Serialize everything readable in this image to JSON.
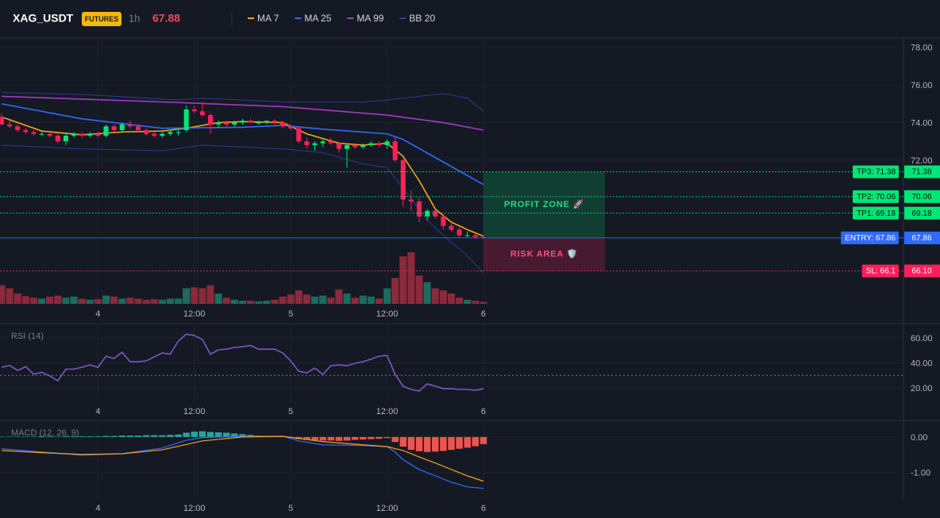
{
  "header": {
    "symbol": "XAG_USDT",
    "badge": "FUTURES",
    "interval": "1h",
    "last_price": 67.88
  },
  "chart_data": [
    {
      "type": "candlestick",
      "xlim": [
        -0.2,
        112.3
      ],
      "xticks": [
        {
          "value": 12,
          "label": "4"
        },
        {
          "value": 24,
          "label": "12:00"
        },
        {
          "value": 36,
          "label": "5"
        },
        {
          "value": 48,
          "label": "12:00"
        },
        {
          "value": 60,
          "label": "6"
        }
      ],
      "ylim": [
        64.35,
        78.5
      ],
      "yticks": [
        {
          "value": 78,
          "label": "78.00"
        },
        {
          "value": 76,
          "label": "76.00"
        },
        {
          "value": 74,
          "label": "74.00"
        },
        {
          "value": 72,
          "label": "72.00"
        }
      ],
      "grid": true,
      "up_color": "#00e676",
      "down_color": "#ff1f5a",
      "open": [
        74.3,
        73.9,
        73.8,
        73.6,
        73.5,
        73.4,
        73.4,
        73.3,
        73.0,
        73.3,
        73.4,
        73.3,
        73.4,
        73.3,
        73.8,
        73.6,
        73.9,
        73.8,
        73.6,
        73.4,
        73.3,
        73.4,
        73.5,
        73.6,
        74.7,
        74.6,
        74.4,
        73.9,
        74.0,
        73.9,
        74.0,
        74.1,
        74.0,
        74.0,
        74.1,
        74.0,
        73.8,
        73.7,
        73.0,
        72.8,
        72.9,
        73.0,
        72.9,
        72.6,
        72.8,
        72.7,
        72.8,
        72.9,
        72.8,
        73.0,
        72.0,
        69.9,
        69.8,
        69.0,
        69.3,
        69.0,
        68.5,
        68.3,
        68.0,
        68.0,
        67.9
      ],
      "high": [
        74.5,
        74.1,
        73.9,
        73.7,
        73.6,
        73.5,
        73.5,
        73.4,
        73.4,
        73.5,
        73.5,
        73.5,
        73.5,
        73.9,
        73.9,
        74.0,
        74.1,
        73.9,
        73.7,
        73.5,
        73.5,
        73.6,
        73.6,
        74.9,
        74.9,
        75.1,
        74.5,
        74.1,
        74.1,
        74.1,
        74.2,
        74.2,
        74.1,
        74.1,
        74.2,
        74.1,
        73.9,
        73.8,
        73.2,
        73.0,
        73.1,
        73.2,
        73.0,
        72.9,
        72.9,
        72.9,
        73.0,
        73.0,
        73.1,
        73.2,
        72.1,
        70.4,
        70.0,
        69.4,
        69.4,
        69.1,
        68.7,
        68.4,
        68.2,
        68.1,
        68.0
      ],
      "low": [
        73.9,
        73.7,
        73.5,
        73.4,
        73.3,
        73.3,
        73.2,
        72.9,
        72.8,
        73.2,
        73.2,
        73.2,
        73.2,
        73.2,
        73.5,
        73.5,
        73.7,
        73.5,
        73.3,
        73.2,
        73.2,
        73.3,
        73.3,
        73.5,
        74.5,
        74.3,
        73.4,
        73.7,
        73.8,
        73.8,
        73.9,
        74.0,
        73.9,
        73.9,
        73.9,
        73.7,
        73.6,
        72.9,
        72.6,
        72.5,
        72.7,
        72.8,
        72.4,
        71.6,
        72.6,
        72.6,
        72.7,
        72.7,
        72.6,
        71.9,
        69.5,
        69.3,
        68.7,
        68.8,
        68.9,
        68.3,
        68.2,
        67.9,
        67.9,
        67.8,
        67.8
      ],
      "close": [
        73.9,
        73.8,
        73.6,
        73.5,
        73.4,
        73.4,
        73.3,
        73.0,
        73.3,
        73.4,
        73.3,
        73.4,
        73.3,
        73.8,
        73.6,
        73.9,
        73.8,
        73.6,
        73.4,
        73.3,
        73.4,
        73.5,
        73.5,
        74.7,
        74.6,
        74.4,
        73.9,
        74.0,
        73.9,
        74.0,
        74.1,
        74.0,
        74.0,
        74.1,
        74.0,
        73.8,
        73.7,
        73.0,
        72.8,
        72.9,
        73.0,
        72.9,
        72.6,
        72.8,
        72.7,
        72.8,
        72.9,
        72.8,
        73.0,
        72.0,
        69.9,
        69.8,
        69.0,
        69.3,
        69.0,
        68.5,
        68.3,
        68.0,
        68.0,
        67.9,
        67.88
      ],
      "volume": {
        "ylim": [
          0,
          100
        ],
        "up_color": "#1d6b5e",
        "down_color": "#8a2a3c",
        "values": [
          36,
          30,
          20,
          15,
          12,
          10,
          14,
          16,
          12,
          14,
          10,
          8,
          9,
          16,
          14,
          10,
          12,
          10,
          8,
          9,
          8,
          10,
          10,
          30,
          32,
          30,
          36,
          20,
          12,
          8,
          6,
          6,
          5,
          6,
          8,
          14,
          18,
          26,
          18,
          14,
          16,
          12,
          28,
          20,
          12,
          16,
          14,
          10,
          30,
          50,
          92,
          100,
          55,
          42,
          30,
          26,
          20,
          12,
          8,
          6,
          4
        ]
      },
      "series": [
        {
          "name": "MA 7",
          "color": "#f7a21b",
          "x": [
            0,
            5,
            10,
            15,
            20,
            23,
            27,
            30,
            35,
            38,
            42,
            45,
            48,
            50,
            52,
            54,
            56,
            58,
            60
          ],
          "values": [
            74.3,
            73.55,
            73.35,
            73.5,
            73.55,
            73.7,
            74.0,
            74.05,
            74.0,
            73.4,
            72.9,
            72.8,
            72.9,
            72.2,
            70.9,
            69.4,
            68.7,
            68.3,
            67.95
          ]
        },
        {
          "name": "MA 25",
          "color": "#2f6bff",
          "x": [
            0,
            10,
            20,
            30,
            35,
            40,
            48,
            50,
            55,
            60
          ],
          "values": [
            75.0,
            74.2,
            73.7,
            73.75,
            73.85,
            73.65,
            73.4,
            73.1,
            71.9,
            70.7
          ]
        },
        {
          "name": "MA 99",
          "color": "#a43bc4",
          "x": [
            0,
            20,
            35,
            48,
            55,
            60
          ],
          "values": [
            75.4,
            75.1,
            74.85,
            74.4,
            74.0,
            73.6
          ]
        },
        {
          "name": "BB 20",
          "color": "#2c3b8f",
          "bands": [
            {
              "x": [
                0,
                10,
                22,
                25,
                35,
                45,
                48,
                52,
                55,
                58,
                60
              ],
              "values": [
                75.6,
                75.5,
                75.2,
                75.3,
                75.1,
                75.1,
                75.2,
                75.4,
                75.55,
                75.3,
                74.6
              ]
            },
            {
              "x": [
                0,
                10,
                20,
                25,
                35,
                40,
                45,
                48,
                50,
                53,
                55,
                58,
                60
              ],
              "values": [
                72.8,
                72.6,
                72.5,
                72.8,
                72.6,
                72.4,
                71.8,
                71.6,
                70.5,
                68.8,
                68.0,
                66.9,
                66.0
              ]
            }
          ]
        }
      ],
      "levels": [
        {
          "label": "TP3: 71.38",
          "value": 71.38,
          "axis_label": "71.38",
          "color": "#00e676",
          "text_color": "#0b0e14",
          "style": "dotted"
        },
        {
          "label": "TP2: 70.06",
          "value": 70.06,
          "axis_label": "70.06",
          "color": "#00e676",
          "text_color": "#0b0e14",
          "style": "dotted"
        },
        {
          "label": "TP1: 69.18",
          "value": 69.18,
          "axis_label": "69.18",
          "color": "#00e676",
          "text_color": "#0b0e14",
          "style": "dotted"
        },
        {
          "label": "ENTRY: 67.86",
          "value": 67.86,
          "axis_label": "67.86",
          "color": "#2f6bff",
          "text_color": "#ffffff",
          "style": "solid"
        },
        {
          "label": "SL: 66.1",
          "value": 66.1,
          "axis_label": "66.10",
          "color": "#ff1f5a",
          "text_color": "#ffffff",
          "style": "dotted"
        }
      ],
      "zones": [
        {
          "label": "PROFIT ZONE 🚀",
          "range": [
            67.86,
            71.38
          ],
          "color": "#00c46a",
          "text_color": "#2bd98a"
        },
        {
          "label": "RISK AREA 🛡️",
          "range": [
            66.1,
            67.86
          ],
          "color": "#ff1f5a",
          "text_color": "#ff4d86"
        }
      ]
    },
    {
      "type": "line",
      "title": "RSI (14)",
      "ylim": [
        7.9,
        70.2
      ],
      "yticks": [
        {
          "value": 60,
          "label": "60.00"
        },
        {
          "value": 40,
          "label": "40.00"
        },
        {
          "value": 20,
          "label": "20.00"
        }
      ],
      "hlines": [
        30
      ],
      "grid": true,
      "series": [
        {
          "color": "#7e57c2",
          "values": [
            36.5,
            38,
            34,
            37,
            31,
            32.5,
            29.6,
            25.7,
            35,
            35,
            36.5,
            38.4,
            36.5,
            45.4,
            43.5,
            48.6,
            41,
            41,
            41.6,
            44.8,
            48,
            47,
            57.5,
            63,
            62,
            58.7,
            47,
            50.5,
            51,
            52.4,
            53,
            54,
            51,
            51,
            51,
            48,
            41.6,
            33.3,
            32,
            35.9,
            30.8,
            37.8,
            38.4,
            37.8,
            39.7,
            41,
            43,
            45.4,
            46,
            30.8,
            21.3,
            18.7,
            17.5,
            23.2,
            21.3,
            19.4,
            19.4,
            18.7,
            18.7,
            18.1,
            19.4
          ]
        }
      ]
    },
    {
      "type": "macd",
      "title": "MACD (12, 26, 9)",
      "ylim": [
        -1.76,
        0.42
      ],
      "yticks": [
        {
          "value": 0,
          "label": "0.00"
        },
        {
          "value": -1,
          "label": "-1.00"
        }
      ],
      "grid": true,
      "histogram": {
        "up_color": "#26a69a",
        "down_color": "#ef5350",
        "values": [
          0.01,
          0.01,
          0.01,
          0.01,
          0.01,
          0.02,
          0.02,
          0.01,
          0.02,
          0.02,
          0.02,
          0.02,
          0.02,
          0.03,
          0.03,
          0.04,
          0.04,
          0.04,
          0.05,
          0.05,
          0.05,
          0.06,
          0.07,
          0.12,
          0.15,
          0.16,
          0.14,
          0.13,
          0.12,
          0.1,
          0.08,
          0.06,
          0.04,
          0.03,
          0.02,
          0.01,
          -0.03,
          -0.06,
          -0.08,
          -0.09,
          -0.1,
          -0.1,
          -0.11,
          -0.1,
          -0.08,
          -0.07,
          -0.06,
          -0.05,
          -0.03,
          -0.14,
          -0.27,
          -0.36,
          -0.4,
          -0.42,
          -0.41,
          -0.39,
          -0.36,
          -0.33,
          -0.3,
          -0.26,
          -0.2
        ]
      },
      "series": [
        {
          "color": "#2f6bff",
          "x": [
            0,
            5,
            10,
            15,
            20,
            23,
            25,
            30,
            35,
            37,
            40,
            45,
            48,
            49,
            50,
            52,
            54,
            56,
            58,
            60
          ],
          "values": [
            -0.33,
            -0.42,
            -0.51,
            -0.47,
            -0.31,
            -0.09,
            -0.02,
            0.02,
            0.02,
            -0.11,
            -0.22,
            -0.24,
            -0.27,
            -0.42,
            -0.64,
            -0.91,
            -1.09,
            -1.27,
            -1.4,
            -1.44
          ]
        },
        {
          "color": "#f7a21b",
          "x": [
            0,
            5,
            10,
            15,
            20,
            25,
            30,
            35,
            40,
            45,
            48,
            50,
            52,
            54,
            56,
            58,
            60
          ],
          "values": [
            -0.38,
            -0.44,
            -0.49,
            -0.47,
            -0.36,
            -0.11,
            0,
            0.02,
            -0.13,
            -0.22,
            -0.27,
            -0.38,
            -0.56,
            -0.73,
            -0.91,
            -1.09,
            -1.24
          ]
        }
      ]
    }
  ]
}
